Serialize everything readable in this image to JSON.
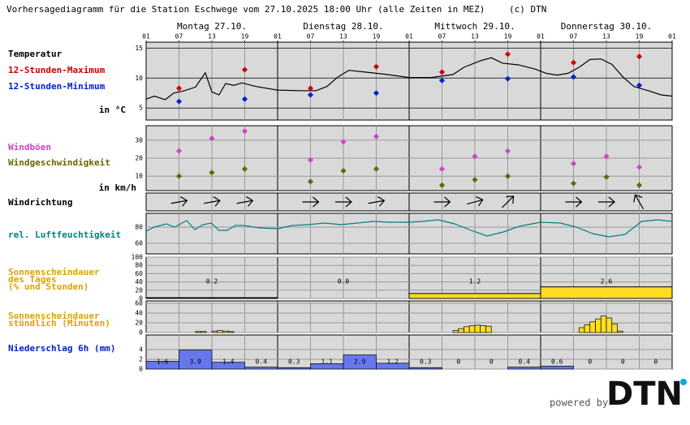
{
  "chart_data": {
    "type": "meteogram",
    "title": "Vorhersagediagramm für die Station Eschwege vom 27.10.2025 18:00 Uhr (alle Zeiten in MEZ)",
    "credit": "(c) DTN",
    "xlim": [
      0,
      96
    ],
    "days": [
      "Montag 27.10.",
      "Dienstag 28.10.",
      "Mittwoch 29.10.",
      "Donnerstag 30.10."
    ],
    "hour_labels": [
      "01",
      "07",
      "13",
      "19",
      "01",
      "07",
      "13",
      "19",
      "01",
      "07",
      "13",
      "19",
      "01",
      "07",
      "13",
      "19",
      "01"
    ],
    "footer": {
      "powered_by": "powered by",
      "logo": "DTN"
    },
    "panels": {
      "temperature": {
        "label": "Temperatur",
        "unit_label": "in °C",
        "ylim": [
          3,
          16
        ],
        "yticks": [
          5,
          10,
          15
        ],
        "line": {
          "color": "#000000",
          "x": [
            0,
            1.5,
            3.5,
            5,
            7,
            9,
            10.8,
            12,
            13.3,
            14.5,
            16,
            17.5,
            20,
            24,
            28,
            31,
            33,
            35,
            37,
            40,
            44,
            48,
            52,
            56,
            58,
            61,
            63,
            65,
            68,
            71,
            73,
            75,
            77,
            79,
            81,
            83,
            85,
            87,
            89,
            92,
            94,
            96
          ],
          "values": [
            6.5,
            7.0,
            6.4,
            7.5,
            7.9,
            8.5,
            10.9,
            7.7,
            7.2,
            9.1,
            8.8,
            9.2,
            8.6,
            8.0,
            7.9,
            7.9,
            8.6,
            10.2,
            11.3,
            11.0,
            10.6,
            10.1,
            10.1,
            10.6,
            11.8,
            12.9,
            13.4,
            12.5,
            12.2,
            11.5,
            10.8,
            10.5,
            10.8,
            11.8,
            13.1,
            13.2,
            12.3,
            10.2,
            8.6,
            7.8,
            7.2,
            7.0
          ]
        },
        "max": {
          "name": "12-Stunden-Maximum",
          "color": "#cc0000",
          "x": [
            6,
            18,
            30,
            42,
            54,
            66,
            78,
            90
          ],
          "values": [
            8.3,
            11.4,
            8.3,
            11.9,
            11.0,
            14.0,
            12.6,
            13.6
          ]
        },
        "min": {
          "name": "12-Stunden-Minimum",
          "color": "#0022cc",
          "x": [
            6,
            18,
            30,
            42,
            54,
            66,
            78,
            90
          ],
          "values": [
            6.1,
            6.5,
            7.2,
            7.5,
            9.6,
            9.9,
            10.2,
            8.8
          ]
        }
      },
      "wind": {
        "unit_label": "in km/h",
        "ylim": [
          2,
          38
        ],
        "yticks": [
          10,
          20,
          30
        ],
        "gusts": {
          "name": "Windböen",
          "color": "#cc44cc",
          "x": [
            6,
            12,
            18,
            30,
            36,
            42,
            54,
            60,
            66,
            78,
            84,
            90
          ],
          "values": [
            24,
            31,
            35,
            19,
            29,
            32,
            14,
            21,
            24,
            17,
            21,
            15
          ]
        },
        "speed": {
          "name": "Windgeschwindigkeit",
          "color": "#666600",
          "x": [
            6,
            12,
            18,
            30,
            36,
            42,
            54,
            60,
            66,
            78,
            84,
            90
          ],
          "values": [
            10,
            12,
            14,
            7,
            13,
            14,
            5,
            8,
            10,
            6,
            9.5,
            5
          ]
        }
      },
      "wind_direction": {
        "label": "Windrichtung",
        "x": [
          6,
          12,
          18,
          30,
          36,
          42,
          54,
          60,
          66,
          78,
          84,
          90
        ],
        "arrow_deg": [
          80,
          80,
          80,
          90,
          90,
          80,
          90,
          75,
          45,
          90,
          90,
          330
        ]
      },
      "humidity": {
        "label": "rel. Luftfeuchtigkeit",
        "color": "#008080",
        "ylim": [
          47,
          97
        ],
        "yticks": [
          60,
          80
        ],
        "x": [
          0,
          1.5,
          3.7,
          5.2,
          7.4,
          8.9,
          10.4,
          11.9,
          13.3,
          14.8,
          16.3,
          17.8,
          20.7,
          24,
          26.7,
          29.6,
          32.6,
          35.6,
          38.5,
          41.5,
          44.4,
          48,
          50.4,
          53.3,
          56.3,
          59.3,
          62.2,
          65.2,
          68.1,
          72,
          75.6,
          78.5,
          81.5,
          84.4,
          87.4,
          90.4,
          93.3,
          96
        ],
        "values": [
          75,
          80,
          84,
          80,
          88,
          77,
          83,
          85,
          76,
          76,
          82,
          82,
          79,
          78,
          82,
          83,
          85,
          83,
          85,
          87,
          86,
          86,
          87,
          89,
          84,
          76,
          69,
          74,
          81,
          86,
          85,
          80,
          72,
          68,
          71,
          87,
          89,
          87
        ]
      },
      "sun_daily": {
        "label_lines": [
          "Sonnenscheindauer",
          "des Tages",
          "(% und Stunden)"
        ],
        "color": "#ffdd22",
        "ylim": [
          0,
          100
        ],
        "yticks": [
          0,
          20,
          40,
          60,
          80,
          100
        ],
        "values": [
          2,
          0,
          12,
          28
        ],
        "hours_labels": [
          "0.2",
          "0.0",
          "1.2",
          "2.6"
        ]
      },
      "sun_hourly": {
        "label_lines": [
          "Sonnenscheindauer",
          "stündlich (Minuten)"
        ],
        "color": "#ffdd22",
        "ylim": [
          0,
          65
        ],
        "yticks": [
          0,
          20,
          40,
          60
        ],
        "x": [
          9,
          10,
          12,
          13,
          14,
          15,
          56,
          57,
          58,
          59,
          60,
          61,
          62,
          79,
          80,
          81,
          82,
          83,
          84,
          85,
          86
        ],
        "values": [
          2,
          2,
          3,
          4,
          3,
          2,
          4,
          8,
          12,
          14,
          15,
          14,
          13,
          10,
          16,
          22,
          28,
          34,
          30,
          18,
          3
        ]
      },
      "precip": {
        "label": "Niederschlag 6h (mm)",
        "color": "#6677ee",
        "ylim": [
          0,
          7
        ],
        "yticks": [
          0,
          2,
          4
        ],
        "values": [
          1.6,
          3.9,
          1.4,
          0.4,
          0.3,
          1.1,
          2.9,
          1.2,
          0.3,
          0,
          0,
          0.4,
          0.6,
          0,
          0,
          0
        ]
      }
    }
  }
}
